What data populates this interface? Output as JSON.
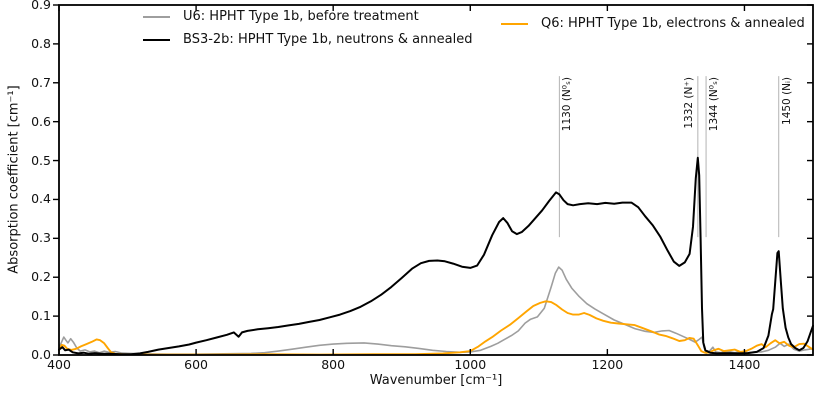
{
  "figure": {
    "xlabel": "Wavenumber [cm⁻¹]",
    "ylabel": "Absorption coefficient [cm⁻¹]"
  },
  "legend": {
    "left": [
      {
        "label": "U6: HPHT Type 1b, before treatment",
        "color": "#9e9e9e"
      },
      {
        "label": "BS3-2b: HPHT Type 1b, neutrons & annealed",
        "color": "#000000"
      }
    ],
    "right": [
      {
        "label": "Q6: HPHT Type 1b, electrons & annealed",
        "color": "#ffa500"
      }
    ]
  },
  "chart_data": {
    "type": "line",
    "title": "",
    "xlabel": "Wavenumber [cm⁻¹]",
    "ylabel": "Absorption coefficient [cm⁻¹]",
    "xlim": [
      400,
      1500
    ],
    "ylim": [
      0,
      0.9
    ],
    "xticks": [
      400,
      600,
      800,
      1000,
      1200,
      1400
    ],
    "yticks": [
      0.0,
      0.1,
      0.2,
      0.3,
      0.4,
      0.5,
      0.6,
      0.7,
      0.8,
      0.9
    ],
    "grid": false,
    "legend_position": "top, frameless, two columns",
    "annotation_line_color": "#b3b3b3",
    "annotation_line_span": [
      0.303,
      0.717
    ],
    "annotations": [
      {
        "x": 1130,
        "label": "1130 (N⁰ₛ)",
        "side": "right"
      },
      {
        "x": 1332,
        "label": "1332 (N⁺)",
        "side": "left"
      },
      {
        "x": 1344,
        "label": "1344 (N⁰ₛ)",
        "side": "right"
      },
      {
        "x": 1450,
        "label": "1450 (Nᵢ)",
        "side": "right"
      }
    ],
    "series": [
      {
        "name": "U6: HPHT Type 1b, before treatment",
        "color": "#9e9e9e",
        "width": 1.6,
        "points": [
          [
            400,
            0.018
          ],
          [
            404,
            0.034
          ],
          [
            407,
            0.046
          ],
          [
            410,
            0.038
          ],
          [
            413,
            0.031
          ],
          [
            417,
            0.042
          ],
          [
            421,
            0.033
          ],
          [
            426,
            0.018
          ],
          [
            431,
            0.01
          ],
          [
            438,
            0.013
          ],
          [
            445,
            0.008
          ],
          [
            452,
            0.01
          ],
          [
            459,
            0.006
          ],
          [
            466,
            0.01
          ],
          [
            473,
            0.007
          ],
          [
            482,
            0.009
          ],
          [
            492,
            0.005
          ],
          [
            505,
            0.004
          ],
          [
            520,
            0.003
          ],
          [
            560,
            0.002
          ],
          [
            600,
            0.002
          ],
          [
            640,
            0.003
          ],
          [
            680,
            0.004
          ],
          [
            700,
            0.006
          ],
          [
            720,
            0.01
          ],
          [
            740,
            0.015
          ],
          [
            760,
            0.02
          ],
          [
            780,
            0.025
          ],
          [
            800,
            0.028
          ],
          [
            820,
            0.03
          ],
          [
            845,
            0.031
          ],
          [
            865,
            0.028
          ],
          [
            885,
            0.024
          ],
          [
            905,
            0.021
          ],
          [
            925,
            0.017
          ],
          [
            945,
            0.012
          ],
          [
            965,
            0.009
          ],
          [
            985,
            0.007
          ],
          [
            1000,
            0.008
          ],
          [
            1015,
            0.012
          ],
          [
            1030,
            0.022
          ],
          [
            1040,
            0.03
          ],
          [
            1050,
            0.04
          ],
          [
            1060,
            0.05
          ],
          [
            1070,
            0.062
          ],
          [
            1080,
            0.082
          ],
          [
            1088,
            0.092
          ],
          [
            1098,
            0.098
          ],
          [
            1108,
            0.12
          ],
          [
            1118,
            0.175
          ],
          [
            1124,
            0.21
          ],
          [
            1129,
            0.226
          ],
          [
            1134,
            0.218
          ],
          [
            1140,
            0.195
          ],
          [
            1148,
            0.172
          ],
          [
            1158,
            0.152
          ],
          [
            1170,
            0.132
          ],
          [
            1182,
            0.118
          ],
          [
            1196,
            0.104
          ],
          [
            1210,
            0.09
          ],
          [
            1225,
            0.079
          ],
          [
            1240,
            0.068
          ],
          [
            1255,
            0.061
          ],
          [
            1268,
            0.058
          ],
          [
            1280,
            0.062
          ],
          [
            1290,
            0.063
          ],
          [
            1300,
            0.056
          ],
          [
            1310,
            0.048
          ],
          [
            1320,
            0.04
          ],
          [
            1328,
            0.033
          ],
          [
            1334,
            0.04
          ],
          [
            1338,
            0.046
          ],
          [
            1341,
            0.02
          ],
          [
            1344,
            0.004
          ],
          [
            1350,
            0.012
          ],
          [
            1354,
            0.02
          ],
          [
            1358,
            0.008
          ],
          [
            1365,
            0.006
          ],
          [
            1375,
            0.01
          ],
          [
            1385,
            0.006
          ],
          [
            1395,
            0.008
          ],
          [
            1405,
            0.006
          ],
          [
            1415,
            0.008
          ],
          [
            1425,
            0.008
          ],
          [
            1435,
            0.012
          ],
          [
            1445,
            0.02
          ],
          [
            1452,
            0.03
          ],
          [
            1458,
            0.022
          ],
          [
            1465,
            0.028
          ],
          [
            1472,
            0.015
          ],
          [
            1480,
            0.01
          ],
          [
            1488,
            0.013
          ],
          [
            1495,
            0.015
          ],
          [
            1500,
            0.016
          ]
        ]
      },
      {
        "name": "Q6: HPHT Type 1b, electrons & annealed",
        "color": "#ffa500",
        "width": 1.9,
        "points": [
          [
            400,
            0.012
          ],
          [
            404,
            0.026
          ],
          [
            408,
            0.024
          ],
          [
            412,
            0.016
          ],
          [
            418,
            0.013
          ],
          [
            425,
            0.016
          ],
          [
            432,
            0.022
          ],
          [
            440,
            0.028
          ],
          [
            448,
            0.034
          ],
          [
            455,
            0.04
          ],
          [
            460,
            0.038
          ],
          [
            466,
            0.03
          ],
          [
            471,
            0.018
          ],
          [
            476,
            0.007
          ],
          [
            482,
            0.003
          ],
          [
            492,
            0.002
          ],
          [
            510,
            0.001
          ],
          [
            560,
            0.001
          ],
          [
            620,
            0.001
          ],
          [
            700,
            0.002
          ],
          [
            780,
            0.001
          ],
          [
            860,
            0.002
          ],
          [
            920,
            0.002
          ],
          [
            960,
            0.004
          ],
          [
            985,
            0.007
          ],
          [
            1000,
            0.01
          ],
          [
            1012,
            0.022
          ],
          [
            1022,
            0.035
          ],
          [
            1032,
            0.046
          ],
          [
            1045,
            0.063
          ],
          [
            1058,
            0.078
          ],
          [
            1070,
            0.095
          ],
          [
            1082,
            0.112
          ],
          [
            1092,
            0.126
          ],
          [
            1102,
            0.134
          ],
          [
            1110,
            0.138
          ],
          [
            1118,
            0.136
          ],
          [
            1126,
            0.128
          ],
          [
            1134,
            0.117
          ],
          [
            1142,
            0.108
          ],
          [
            1150,
            0.104
          ],
          [
            1158,
            0.104
          ],
          [
            1166,
            0.108
          ],
          [
            1174,
            0.103
          ],
          [
            1184,
            0.094
          ],
          [
            1194,
            0.088
          ],
          [
            1205,
            0.083
          ],
          [
            1216,
            0.081
          ],
          [
            1228,
            0.079
          ],
          [
            1240,
            0.077
          ],
          [
            1252,
            0.069
          ],
          [
            1264,
            0.061
          ],
          [
            1275,
            0.053
          ],
          [
            1285,
            0.049
          ],
          [
            1295,
            0.043
          ],
          [
            1305,
            0.036
          ],
          [
            1313,
            0.038
          ],
          [
            1320,
            0.044
          ],
          [
            1326,
            0.042
          ],
          [
            1332,
            0.025
          ],
          [
            1337,
            0.01
          ],
          [
            1342,
            0.006
          ],
          [
            1348,
            0.006
          ],
          [
            1355,
            0.012
          ],
          [
            1362,
            0.016
          ],
          [
            1370,
            0.01
          ],
          [
            1378,
            0.012
          ],
          [
            1386,
            0.014
          ],
          [
            1394,
            0.008
          ],
          [
            1402,
            0.01
          ],
          [
            1410,
            0.016
          ],
          [
            1418,
            0.024
          ],
          [
            1425,
            0.028
          ],
          [
            1431,
            0.02
          ],
          [
            1438,
            0.03
          ],
          [
            1445,
            0.038
          ],
          [
            1451,
            0.03
          ],
          [
            1458,
            0.034
          ],
          [
            1465,
            0.024
          ],
          [
            1472,
            0.02
          ],
          [
            1480,
            0.028
          ],
          [
            1487,
            0.029
          ],
          [
            1493,
            0.022
          ],
          [
            1500,
            0.014
          ]
        ]
      },
      {
        "name": "BS3-2b: HPHT Type 1b, neutrons & annealed",
        "color": "#000000",
        "width": 2,
        "points": [
          [
            400,
            0.014
          ],
          [
            405,
            0.02
          ],
          [
            409,
            0.012
          ],
          [
            414,
            0.014
          ],
          [
            420,
            0.007
          ],
          [
            428,
            0.004
          ],
          [
            436,
            0.006
          ],
          [
            444,
            0.003
          ],
          [
            452,
            0.005
          ],
          [
            462,
            0.003
          ],
          [
            475,
            0.003
          ],
          [
            490,
            0.002
          ],
          [
            505,
            0.002
          ],
          [
            518,
            0.004
          ],
          [
            530,
            0.008
          ],
          [
            545,
            0.014
          ],
          [
            560,
            0.018
          ],
          [
            575,
            0.022
          ],
          [
            590,
            0.027
          ],
          [
            600,
            0.032
          ],
          [
            615,
            0.038
          ],
          [
            630,
            0.045
          ],
          [
            645,
            0.052
          ],
          [
            655,
            0.058
          ],
          [
            662,
            0.047
          ],
          [
            667,
            0.058
          ],
          [
            675,
            0.062
          ],
          [
            690,
            0.066
          ],
          [
            705,
            0.069
          ],
          [
            720,
            0.072
          ],
          [
            735,
            0.076
          ],
          [
            750,
            0.08
          ],
          [
            765,
            0.085
          ],
          [
            780,
            0.09
          ],
          [
            795,
            0.097
          ],
          [
            810,
            0.104
          ],
          [
            825,
            0.113
          ],
          [
            840,
            0.124
          ],
          [
            855,
            0.138
          ],
          [
            870,
            0.155
          ],
          [
            885,
            0.175
          ],
          [
            900,
            0.198
          ],
          [
            915,
            0.222
          ],
          [
            928,
            0.236
          ],
          [
            940,
            0.242
          ],
          [
            952,
            0.243
          ],
          [
            963,
            0.241
          ],
          [
            975,
            0.235
          ],
          [
            988,
            0.227
          ],
          [
            1000,
            0.224
          ],
          [
            1010,
            0.23
          ],
          [
            1020,
            0.258
          ],
          [
            1032,
            0.308
          ],
          [
            1042,
            0.342
          ],
          [
            1048,
            0.352
          ],
          [
            1054,
            0.34
          ],
          [
            1061,
            0.318
          ],
          [
            1068,
            0.311
          ],
          [
            1075,
            0.316
          ],
          [
            1085,
            0.332
          ],
          [
            1095,
            0.352
          ],
          [
            1105,
            0.372
          ],
          [
            1115,
            0.396
          ],
          [
            1125,
            0.418
          ],
          [
            1130,
            0.413
          ],
          [
            1136,
            0.398
          ],
          [
            1142,
            0.388
          ],
          [
            1150,
            0.385
          ],
          [
            1160,
            0.388
          ],
          [
            1172,
            0.39
          ],
          [
            1185,
            0.388
          ],
          [
            1197,
            0.391
          ],
          [
            1210,
            0.389
          ],
          [
            1222,
            0.392
          ],
          [
            1235,
            0.392
          ],
          [
            1245,
            0.38
          ],
          [
            1255,
            0.357
          ],
          [
            1266,
            0.334
          ],
          [
            1277,
            0.305
          ],
          [
            1288,
            0.268
          ],
          [
            1297,
            0.24
          ],
          [
            1305,
            0.229
          ],
          [
            1313,
            0.238
          ],
          [
            1320,
            0.26
          ],
          [
            1325,
            0.33
          ],
          [
            1329,
            0.455
          ],
          [
            1332,
            0.507
          ],
          [
            1334,
            0.462
          ],
          [
            1336,
            0.3
          ],
          [
            1338,
            0.12
          ],
          [
            1340,
            0.032
          ],
          [
            1343,
            0.012
          ],
          [
            1350,
            0.006
          ],
          [
            1360,
            0.004
          ],
          [
            1375,
            0.005
          ],
          [
            1390,
            0.004
          ],
          [
            1405,
            0.005
          ],
          [
            1418,
            0.008
          ],
          [
            1428,
            0.018
          ],
          [
            1435,
            0.05
          ],
          [
            1440,
            0.105
          ],
          [
            1442,
            0.118
          ],
          [
            1445,
            0.19
          ],
          [
            1448,
            0.262
          ],
          [
            1450,
            0.267
          ],
          [
            1453,
            0.19
          ],
          [
            1456,
            0.12
          ],
          [
            1460,
            0.07
          ],
          [
            1464,
            0.045
          ],
          [
            1468,
            0.028
          ],
          [
            1474,
            0.018
          ],
          [
            1480,
            0.012
          ],
          [
            1486,
            0.018
          ],
          [
            1492,
            0.035
          ],
          [
            1497,
            0.06
          ],
          [
            1500,
            0.075
          ]
        ]
      }
    ]
  }
}
